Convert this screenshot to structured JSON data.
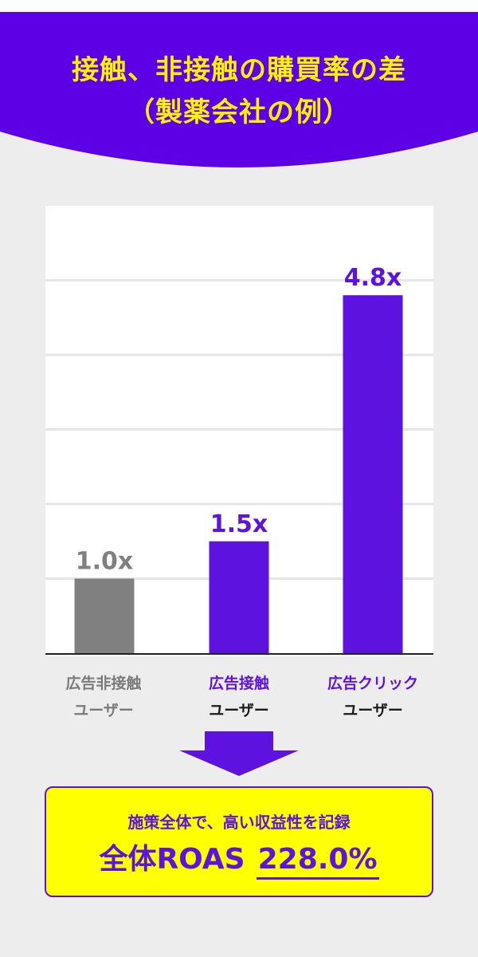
{
  "header": {
    "title_line1": "接触、非接触の購買率の差",
    "title_line2": "（製薬会社の例）"
  },
  "colors": {
    "header_bg": "#5e00e6",
    "title_text": "#fff200",
    "bar_gray": "#808080",
    "bar_purple": "#5e12e0",
    "summary_bg": "#ffff00",
    "page_bg": "#ededed"
  },
  "chart_data": {
    "type": "bar",
    "title": "",
    "xlabel": "",
    "ylabel": "",
    "ylim": [
      0,
      6
    ],
    "grid": true,
    "categories": [
      "広告非接触ユーザー",
      "広告接触ユーザー",
      "広告クリックユーザー"
    ],
    "values": [
      1.0,
      1.5,
      4.8
    ],
    "data_labels": [
      "1.0x",
      "1.5x",
      "4.8x"
    ],
    "bar_colors": [
      "#808080",
      "#5e12e0",
      "#5e12e0"
    ]
  },
  "xlabels": [
    {
      "line1": "広告非接触",
      "line2": "ユーザー"
    },
    {
      "line1": "広告接触",
      "line2": "ユーザー"
    },
    {
      "line1": "広告クリック",
      "line2": "ユーザー"
    }
  ],
  "summary": {
    "subtitle": "施策全体で、高い収益性を記録",
    "label": "全体ROAS",
    "value": "228.0%"
  }
}
